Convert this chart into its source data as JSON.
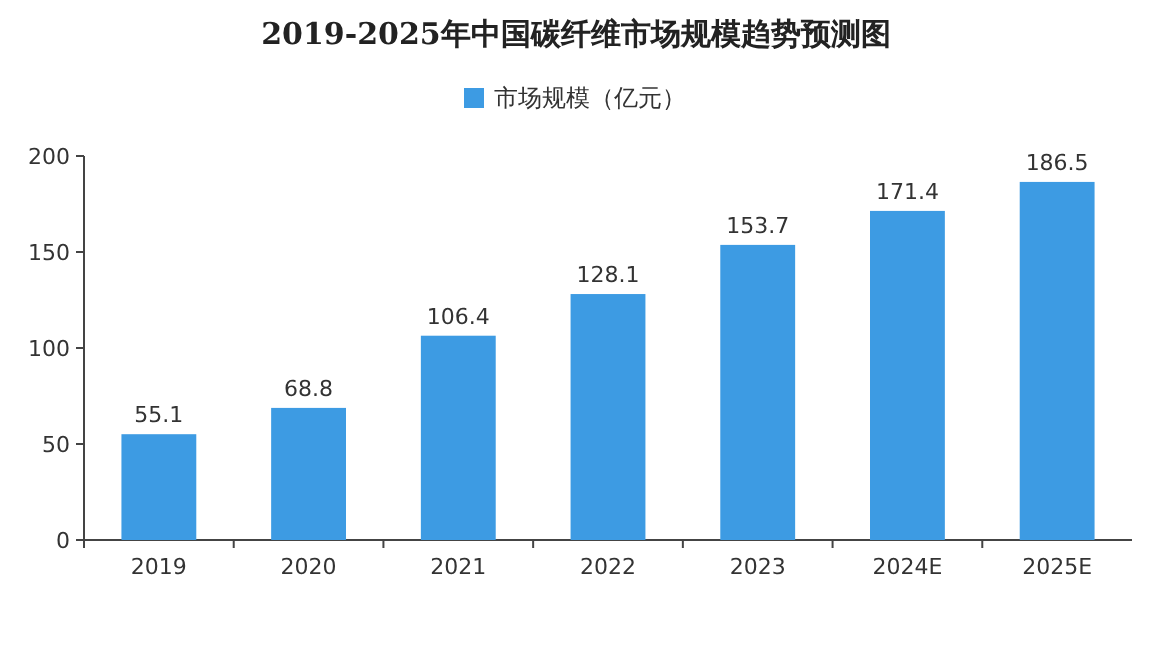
{
  "chart_data": {
    "type": "bar",
    "title": "2019-2025年中国碳纤维市场规模趋势预测图",
    "categories": [
      "2019",
      "2020",
      "2021",
      "2022",
      "2023",
      "2024E",
      "2025E"
    ],
    "series": [
      {
        "name": "市场规模（亿元）",
        "color": "#3d9be3",
        "values": [
          55.1,
          68.8,
          106.4,
          128.1,
          153.7,
          171.4,
          186.5
        ]
      }
    ],
    "ylim": [
      0,
      200
    ],
    "yticks": [
      0,
      50,
      100,
      150,
      200
    ],
    "data_labels": true,
    "legend": "top",
    "grid": false
  }
}
